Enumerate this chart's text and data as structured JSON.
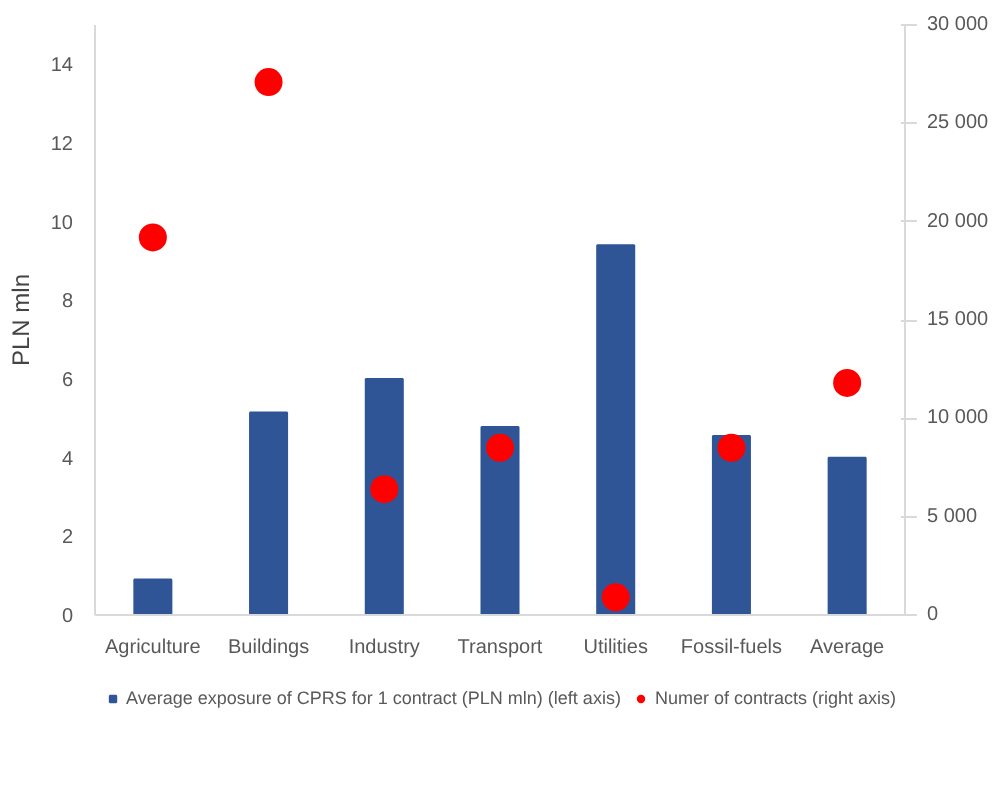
{
  "chart_data": {
    "type": "bar",
    "ylabel": "PLN mln",
    "categories": [
      "Agriculture",
      "Buildings",
      "Industry",
      "Transport",
      "Utilities",
      "Fossil-fuels",
      "Average"
    ],
    "series": [
      {
        "name": "Average exposure of CPRS for 1 contract (PLN mln) (left axis)",
        "color": "#2f5597",
        "values": [
          0.9,
          5.15,
          6.0,
          4.78,
          9.4,
          4.55,
          4.0
        ]
      },
      {
        "name": "Numer of contracts (right axis)",
        "type": "scatter",
        "axis": "y2",
        "color": "#ff0000",
        "values": [
          19200,
          27100,
          6400,
          8500,
          900,
          8500,
          11800
        ]
      }
    ],
    "ylim": [
      0,
      15
    ],
    "yticks": [
      0,
      2,
      4,
      6,
      8,
      10,
      12,
      14
    ],
    "y2lim": [
      0,
      30000
    ],
    "y2ticks": [
      {
        "value": 0,
        "label": "0"
      },
      {
        "value": 5000,
        "label": "5 000"
      },
      {
        "value": 10000,
        "label": "10 000"
      },
      {
        "value": 15000,
        "label": "15 000"
      },
      {
        "value": 20000,
        "label": "20 000"
      },
      {
        "value": 25000,
        "label": "25 000"
      },
      {
        "value": 30000,
        "label": "30 000"
      }
    ],
    "grid": false,
    "legend": "bottom",
    "marker": "circle"
  }
}
